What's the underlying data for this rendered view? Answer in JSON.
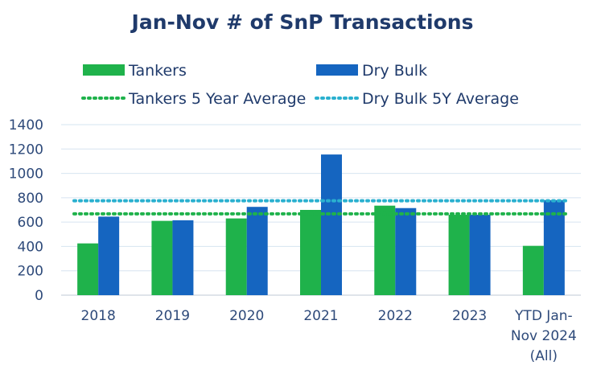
{
  "chart_data": {
    "type": "bar",
    "title": "Jan-Nov # of SnP Transactions",
    "categories": [
      [
        "2018"
      ],
      [
        "2019"
      ],
      [
        "2020"
      ],
      [
        "2021"
      ],
      [
        "2022"
      ],
      [
        "2023"
      ],
      [
        "YTD Jan-",
        "Nov 2024",
        "(All)"
      ]
    ],
    "series": [
      {
        "name": "Tankers",
        "color": "#1fb24b",
        "values": [
          425,
          610,
          630,
          700,
          735,
          660,
          405
        ]
      },
      {
        "name": "Dry Bulk",
        "color": "#1565c0",
        "values": [
          645,
          615,
          725,
          1155,
          715,
          660,
          780
        ]
      }
    ],
    "averages": [
      {
        "name": "Tankers 5 Year Average",
        "color": "#1fb24b",
        "value": 668
      },
      {
        "name": "Dry Bulk 5Y Average",
        "color": "#2ab0cf",
        "value": 775
      }
    ],
    "ylim": [
      0,
      1400
    ],
    "yticks": [
      0,
      200,
      400,
      600,
      800,
      1000,
      1200,
      1400
    ],
    "grid": true,
    "legend_position": "top",
    "xlabel": "",
    "ylabel": ""
  }
}
